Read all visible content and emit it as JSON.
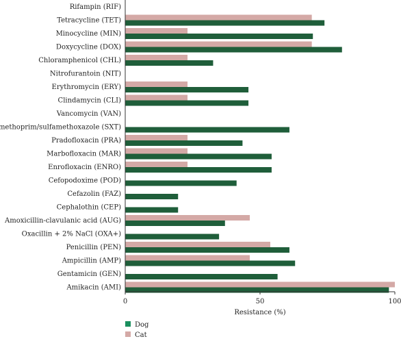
{
  "chart_data": {
    "type": "bar",
    "orientation": "horizontal",
    "categories": [
      "Rifampin (RIF)",
      "Tetracycline (TET)",
      "Minocycline (MIN)",
      "Doxycycline (DOX)",
      "Chloramphenicol (CHL)",
      "Nitrofurantoin (NIT)",
      "Erythromycin (ERY)",
      "Clindamycin (CLI)",
      "Vancomycin (VAN)",
      "Trimethoprim/sulfamethoxazole (SXT)",
      "Pradofloxacin (PRA)",
      "Marbofloxacin (MAR)",
      "Enrofloxacin (ENRO)",
      "Cefopodoxime (POD)",
      "Cefazolin (FAZ)",
      "Cephalothin (CEP)",
      "Amoxicillin-clavulanic acid (AUG)",
      "Oxacillin + 2% NaCl (OXA+)",
      "Penicillin (PEN)",
      "Ampicillin (AMP)",
      "Gentamicin (GEN)",
      "Amikacin (AMI)"
    ],
    "series": [
      {
        "name": "Cat",
        "color": "#d4a9a6",
        "values": [
          0,
          69.2,
          23.1,
          69.2,
          23.1,
          0,
          23.1,
          23.1,
          0,
          0,
          23.1,
          23.1,
          23.1,
          0,
          0,
          0,
          46.2,
          0,
          53.8,
          46.2,
          0,
          100
        ]
      },
      {
        "name": "Dog",
        "color": "#1f5e3a",
        "values": [
          0,
          73.9,
          69.6,
          80.4,
          32.6,
          0,
          45.7,
          45.7,
          0,
          60.9,
          43.5,
          54.3,
          54.3,
          41.3,
          19.6,
          19.6,
          37.0,
          34.8,
          60.9,
          63.0,
          56.5,
          97.8
        ]
      }
    ],
    "xlabel": "Resistance (%)",
    "xlim": [
      0,
      100
    ],
    "xticks": [
      0,
      50,
      100
    ],
    "grid": false,
    "legend": {
      "placement": "bottom-left",
      "entries": [
        {
          "label": "Dog",
          "color": "#1a8f5e"
        },
        {
          "label": "Cat",
          "color": "#d4a9a6"
        }
      ]
    }
  }
}
